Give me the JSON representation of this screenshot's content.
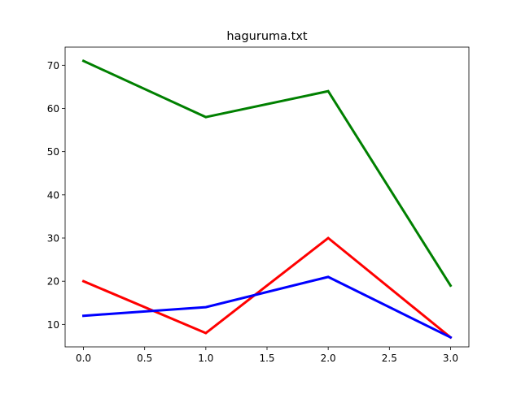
{
  "chart_data": {
    "type": "line",
    "title": "haguruma.txt",
    "xlabel": "",
    "ylabel": "",
    "x": [
      0,
      1,
      2,
      3
    ],
    "series": [
      {
        "color": "#008000",
        "values": [
          71,
          58,
          64,
          19
        ]
      },
      {
        "color": "#ff0000",
        "values": [
          20,
          8,
          30,
          7
        ]
      },
      {
        "color": "#0000ff",
        "values": [
          12,
          14,
          21,
          7
        ]
      }
    ],
    "xlim": [
      -0.15,
      3.15
    ],
    "ylim": [
      4.8,
      74.2
    ],
    "xticks": [
      "0.0",
      "0.5",
      "1.0",
      "1.5",
      "2.0",
      "2.5",
      "3.0"
    ],
    "yticks": [
      "10",
      "20",
      "30",
      "40",
      "50",
      "60",
      "70"
    ],
    "grid": false,
    "legend": "none"
  }
}
